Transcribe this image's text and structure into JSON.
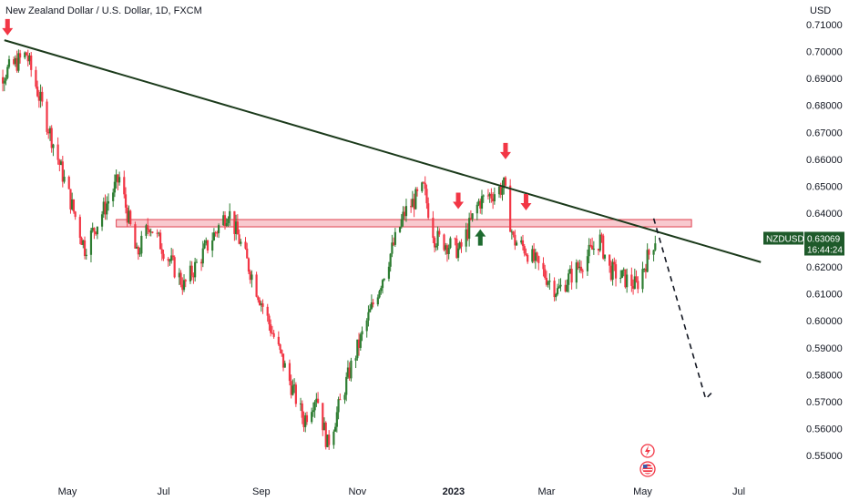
{
  "header": {
    "title": "New Zealand Dollar / U.S. Dollar, 1D, FXCM"
  },
  "price_axis": {
    "currency": "USD"
  },
  "badge": {
    "symbol": "NZDUSD",
    "price": "0.63069",
    "countdown": "16:44:24"
  },
  "colors": {
    "up": "#26a69a",
    "down": "#ef5350",
    "up_candle": "#2e7d32",
    "down_candle": "#f23645",
    "trendline": "#1b3a1b",
    "zone_fill": "#f5b7bd",
    "zone_border": "#e0404f",
    "badge_bg": "#1e5a2a",
    "arrow_down": "#f23645",
    "arrow_up": "#1e6b30"
  },
  "icons": [
    "arrow-down-icon",
    "arrow-up-icon",
    "flash-icon",
    "us-flag-icon"
  ],
  "chart_data": {
    "type": "candlestick",
    "title": "New Zealand Dollar / U.S. Dollar, 1D, FXCM",
    "ylabel": "USD",
    "ylim": [
      0.545,
      0.7135
    ],
    "y_ticks": [
      "0.71000",
      "0.70000",
      "0.69000",
      "0.68000",
      "0.67000",
      "0.66000",
      "0.65000",
      "0.64000",
      "0.63000",
      "0.62000",
      "0.61000",
      "0.60000",
      "0.59000",
      "0.58000",
      "0.57000",
      "0.56000",
      "0.55000"
    ],
    "x_ticks": [
      {
        "label": "May",
        "date": "2022-05-01"
      },
      {
        "label": "Jul",
        "date": "2022-07-01"
      },
      {
        "label": "Sep",
        "date": "2022-09-01"
      },
      {
        "label": "Nov",
        "date": "2022-11-01"
      },
      {
        "label": "2023",
        "date": "2023-01-01",
        "bold": true
      },
      {
        "label": "Mar",
        "date": "2023-03-01"
      },
      {
        "label": "May",
        "date": "2023-05-01"
      },
      {
        "label": "Jul",
        "date": "2023-07-01"
      }
    ],
    "last_price": 0.63069,
    "series": [
      {
        "date": "2022-03-10",
        "close": 0.686
      },
      {
        "date": "2022-04-05",
        "close": 0.699
      },
      {
        "date": "2022-05-12",
        "close": 0.627
      },
      {
        "date": "2022-06-03",
        "close": 0.653
      },
      {
        "date": "2022-06-14",
        "close": 0.624
      },
      {
        "date": "2022-06-22",
        "close": 0.636
      },
      {
        "date": "2022-07-14",
        "close": 0.613
      },
      {
        "date": "2022-08-11",
        "close": 0.641
      },
      {
        "date": "2022-08-18",
        "close": 0.63
      },
      {
        "date": "2022-09-28",
        "close": 0.563
      },
      {
        "date": "2022-10-06",
        "close": 0.573
      },
      {
        "date": "2022-10-13",
        "close": 0.554
      },
      {
        "date": "2022-10-28",
        "close": 0.583
      },
      {
        "date": "2022-11-15",
        "close": 0.613
      },
      {
        "date": "2022-12-01",
        "close": 0.64
      },
      {
        "date": "2022-12-13",
        "close": 0.649
      },
      {
        "date": "2022-12-20",
        "close": 0.631
      },
      {
        "date": "2023-01-05",
        "close": 0.626
      },
      {
        "date": "2023-01-17",
        "close": 0.644
      },
      {
        "date": "2023-02-02",
        "close": 0.65
      },
      {
        "date": "2023-02-08",
        "close": 0.63
      },
      {
        "date": "2023-02-15",
        "close": 0.627
      },
      {
        "date": "2023-03-08",
        "close": 0.611
      },
      {
        "date": "2023-03-24",
        "close": 0.622
      },
      {
        "date": "2023-04-04",
        "close": 0.63
      },
      {
        "date": "2023-04-10",
        "close": 0.619
      },
      {
        "date": "2023-04-27",
        "close": 0.613
      },
      {
        "date": "2023-05-09",
        "close": 0.63069
      }
    ],
    "annotations": {
      "trendline": {
        "from": {
          "date": "2022-03-22",
          "price": 0.7042
        },
        "to": {
          "date": "2023-07-15",
          "price": 0.6218
        }
      },
      "resistance_zone": {
        "from_date": "2022-06-01",
        "to_date": "2023-06-01",
        "top": 0.6376,
        "bottom": 0.6363
      },
      "projection": [
        {
          "date": "2023-05-08",
          "price": 0.638
        },
        {
          "date": "2023-06-10",
          "price": 0.571
        },
        {
          "date": "2023-06-15",
          "price": 0.574
        }
      ],
      "down_arrows": [
        {
          "date": "2022-03-24",
          "price": 0.706
        },
        {
          "date": "2023-01-04",
          "price": 0.6415
        },
        {
          "date": "2023-02-03",
          "price": 0.66
        },
        {
          "date": "2023-02-16",
          "price": 0.641
        }
      ],
      "up_arrows": [
        {
          "date": "2023-01-18",
          "price": 0.634
        }
      ]
    }
  }
}
